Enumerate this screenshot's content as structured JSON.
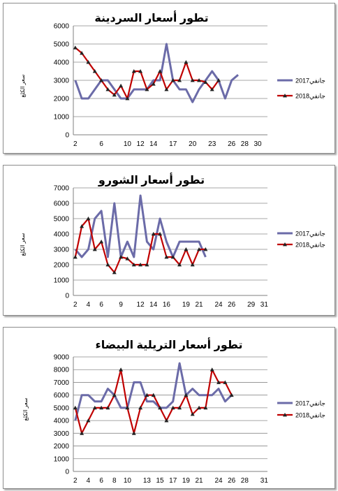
{
  "chart_data": [
    {
      "type": "line",
      "title": "تطور أسعار السردينة",
      "ylabel": "سعر الكلغ",
      "ylim": [
        0,
        6000
      ],
      "yticks": [
        0,
        1000,
        2000,
        3000,
        4000,
        5000,
        6000
      ],
      "xticks": [
        2,
        6,
        10,
        12,
        14,
        17,
        20,
        23,
        26,
        28,
        30
      ],
      "grid": true,
      "legend": "right",
      "series": [
        {
          "name": "جانفي2017",
          "color": "#6b6ba8",
          "marker": "none",
          "x": [
            2,
            3,
            4,
            5,
            6,
            7,
            8,
            9,
            10,
            11,
            12,
            13,
            14,
            15,
            16,
            17,
            18,
            19,
            20,
            21,
            22,
            23,
            24,
            25,
            26,
            27,
            28,
            29,
            30,
            31
          ],
          "values": [
            3000,
            2000,
            2000,
            2500,
            3000,
            3000,
            2500,
            2000,
            2000,
            2500,
            2500,
            2500,
            3000,
            3000,
            5000,
            3000,
            2500,
            2500,
            1800,
            2500,
            3000,
            3500,
            3000,
            2000,
            3000,
            3300,
            null,
            null,
            null,
            null
          ]
        },
        {
          "name": "جانفي2018",
          "color": "#c00000",
          "marker": "triangle",
          "x": [
            2,
            3,
            4,
            5,
            6,
            7,
            8,
            9,
            10,
            11,
            12,
            13,
            14,
            15,
            16,
            17,
            18,
            19,
            20,
            21,
            22,
            23,
            24,
            25,
            26,
            27,
            28,
            29,
            30,
            31
          ],
          "values": [
            4800,
            4500,
            4000,
            3500,
            3000,
            2500,
            2200,
            2700,
            2000,
            3500,
            3500,
            2500,
            2800,
            3500,
            2500,
            3000,
            3000,
            4000,
            3000,
            3000,
            2900,
            2500,
            3000,
            null,
            null,
            null,
            null,
            null,
            null,
            null
          ]
        }
      ]
    },
    {
      "type": "line",
      "title": "تطور أسعار الشورو",
      "ylabel": "سعر الكلغ",
      "ylim": [
        0,
        7000
      ],
      "yticks": [
        0,
        1000,
        2000,
        3000,
        4000,
        5000,
        6000,
        7000
      ],
      "xticks": [
        2,
        4,
        6,
        9,
        12,
        14,
        16,
        19,
        21,
        24,
        26,
        29,
        31
      ],
      "grid": true,
      "legend": "right",
      "series": [
        {
          "name": "جانفي2017",
          "color": "#6b6ba8",
          "marker": "none",
          "x": [
            2,
            3,
            4,
            5,
            6,
            7,
            8,
            9,
            10,
            11,
            12,
            13,
            14,
            15,
            16,
            17,
            18,
            19,
            20,
            21,
            22,
            23,
            24,
            25,
            26,
            27,
            28,
            29,
            30,
            31
          ],
          "values": [
            3000,
            2500,
            3000,
            5000,
            5500,
            2500,
            6000,
            2500,
            3500,
            2500,
            6500,
            3500,
            3000,
            5000,
            3500,
            2500,
            3500,
            3500,
            3500,
            3500,
            2500,
            null,
            null,
            null,
            null,
            null,
            null,
            null,
            null,
            null
          ]
        },
        {
          "name": "جانفي2018",
          "color": "#c00000",
          "marker": "triangle",
          "x": [
            2,
            3,
            4,
            5,
            6,
            7,
            8,
            9,
            10,
            11,
            12,
            13,
            14,
            15,
            16,
            17,
            18,
            19,
            20,
            21,
            22,
            23,
            24,
            25,
            26,
            27,
            28,
            29,
            30,
            31
          ],
          "values": [
            2500,
            4500,
            5000,
            3000,
            3500,
            2000,
            1500,
            2500,
            2400,
            2000,
            2000,
            2000,
            4000,
            4000,
            2500,
            2500,
            2000,
            3000,
            2000,
            3000,
            3000,
            null,
            null,
            null,
            null,
            null,
            null,
            null,
            null,
            null
          ]
        }
      ]
    },
    {
      "type": "line",
      "title": "تطور أسعار التريلية البيضاء",
      "ylabel": "سعر الكلغ",
      "ylim": [
        0,
        9000
      ],
      "yticks": [
        0,
        1000,
        2000,
        3000,
        4000,
        5000,
        6000,
        7000,
        8000,
        9000
      ],
      "xticks": [
        2,
        4,
        6,
        8,
        10,
        13,
        15,
        17,
        19,
        21,
        24,
        26,
        28,
        31
      ],
      "grid": true,
      "legend": "right",
      "series": [
        {
          "name": "جانفي2017",
          "color": "#6b6ba8",
          "marker": "none",
          "x": [
            2,
            3,
            4,
            5,
            6,
            7,
            8,
            9,
            10,
            11,
            12,
            13,
            14,
            15,
            16,
            17,
            18,
            19,
            20,
            21,
            22,
            23,
            24,
            25,
            26,
            27,
            28,
            29,
            30,
            31
          ],
          "values": [
            4000,
            6000,
            6000,
            5500,
            5500,
            6500,
            6000,
            5000,
            5000,
            7000,
            7000,
            5500,
            5500,
            5000,
            5000,
            5500,
            8500,
            6000,
            6500,
            6000,
            6000,
            6000,
            6500,
            5500,
            6000,
            null,
            null,
            null,
            null,
            null
          ]
        },
        {
          "name": "جانفي2018",
          "color": "#c00000",
          "marker": "triangle",
          "x": [
            2,
            3,
            4,
            5,
            6,
            7,
            8,
            9,
            10,
            11,
            12,
            13,
            14,
            15,
            16,
            17,
            18,
            19,
            20,
            21,
            22,
            23,
            24,
            25,
            26,
            27,
            28,
            29,
            30,
            31
          ],
          "values": [
            5000,
            3000,
            4000,
            5000,
            5000,
            5000,
            6000,
            8000,
            5000,
            3000,
            5000,
            6000,
            6000,
            5000,
            4000,
            5000,
            5000,
            6000,
            4500,
            5000,
            5000,
            8000,
            7000,
            7000,
            6000,
            null,
            null,
            null,
            null,
            null
          ]
        }
      ]
    }
  ]
}
